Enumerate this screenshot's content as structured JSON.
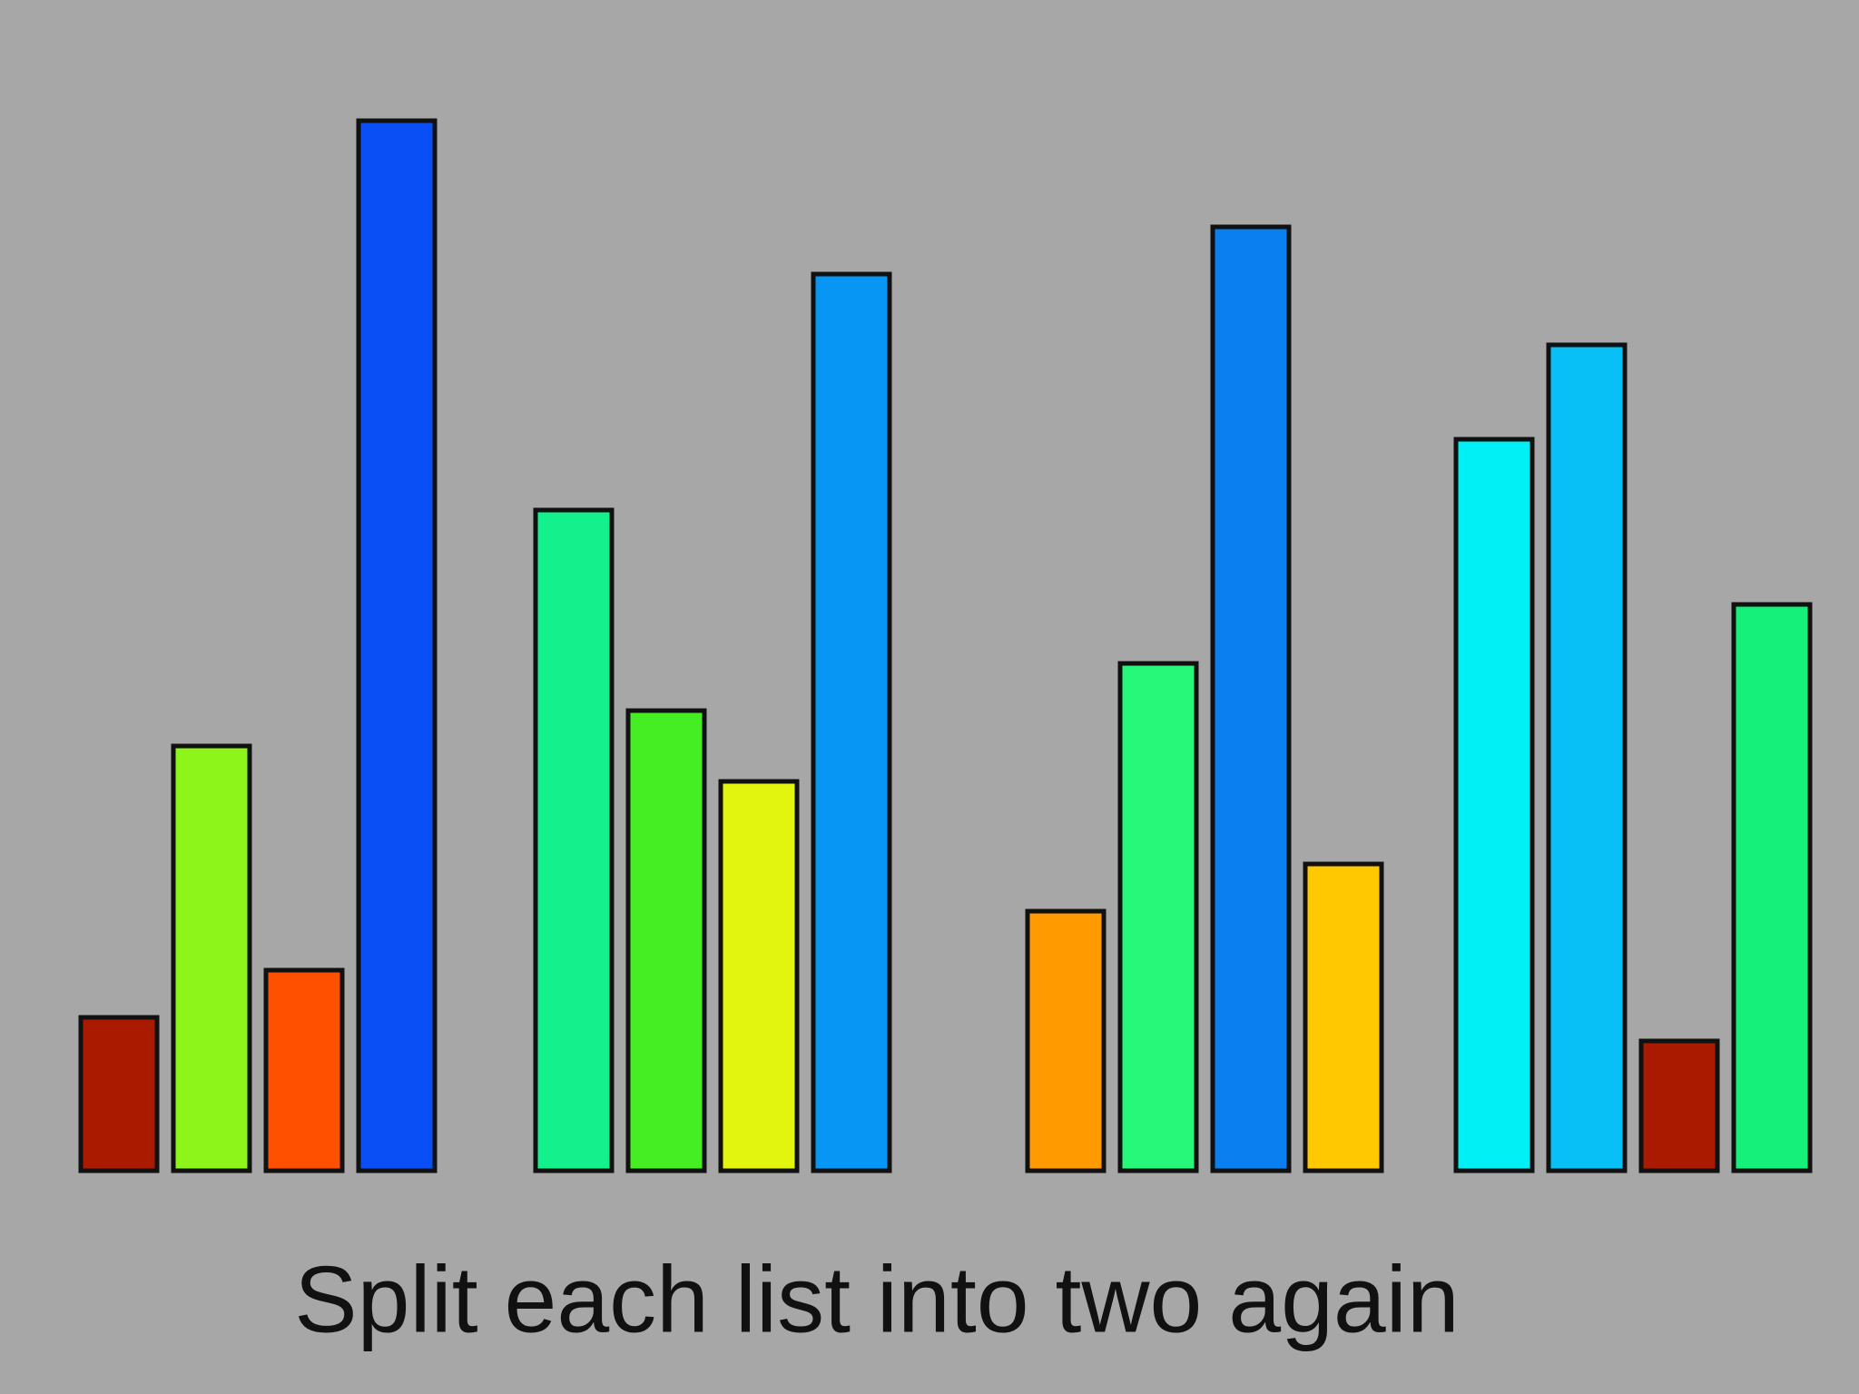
{
  "chart_data": {
    "type": "bar",
    "title": "Split each list into two again",
    "groups": [
      {
        "values": [
          13,
          36,
          17,
          89
        ],
        "colors": [
          "#aa1a00",
          "#8ef51a",
          "#ff5000",
          "#0a4ef5"
        ]
      },
      {
        "values": [
          56,
          39,
          33,
          76
        ],
        "colors": [
          "#14f08c",
          "#44ee22",
          "#e2f50e",
          "#0896f5"
        ]
      },
      {
        "values": [
          22,
          43,
          80,
          26
        ],
        "colors": [
          "#ff9a00",
          "#28f87a",
          "#0a80f0",
          "#ffc800"
        ]
      },
      {
        "values": [
          62,
          70,
          11,
          48
        ],
        "colors": [
          "#00f0f5",
          "#08c0f5",
          "#aa1a00",
          "#14f07a"
        ]
      }
    ]
  }
}
